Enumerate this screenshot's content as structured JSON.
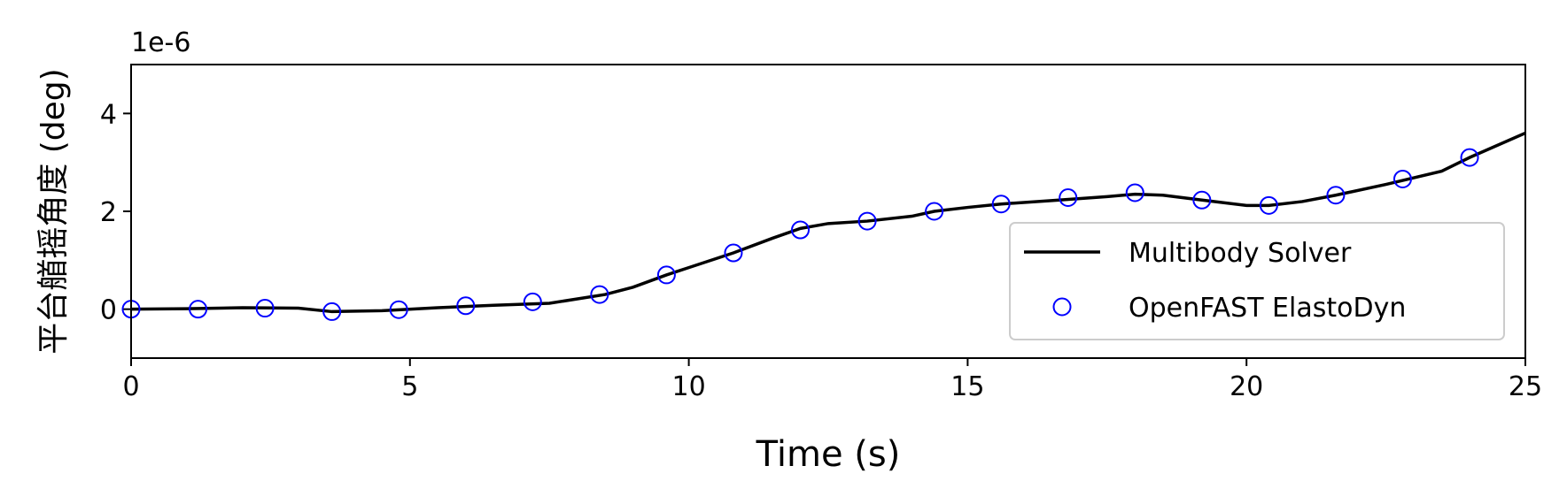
{
  "chart_data": {
    "type": "line",
    "x_label": "Time (s)",
    "y_label": "平台艏摇角度 (deg)",
    "y_offset_label": "1e-6",
    "xlim": [
      0,
      25
    ],
    "xticks": [
      0,
      5,
      10,
      15,
      20,
      25
    ],
    "ylim": [
      -1,
      5
    ],
    "yticks": [
      0,
      2,
      4
    ],
    "grid": false,
    "legend": "lower right",
    "series": [
      {
        "name": "Multibody Solver",
        "color": "#000000",
        "kind": "line",
        "x": [
          0,
          1,
          2,
          3,
          3.6,
          4.5,
          5.5,
          6.5,
          7.5,
          8.5,
          9,
          9.6,
          10,
          10.8,
          11.5,
          12,
          12.5,
          13.2,
          14,
          14.4,
          15,
          15.6,
          16.5,
          17.5,
          18,
          18.5,
          19.2,
          20,
          20.4,
          21,
          21.6,
          22.5,
          23.5,
          24,
          25
        ],
        "values": [
          0,
          0.01,
          0.03,
          0.02,
          -0.05,
          -0.03,
          0.03,
          0.08,
          0.12,
          0.3,
          0.45,
          0.7,
          0.85,
          1.15,
          1.45,
          1.65,
          1.75,
          1.8,
          1.9,
          2.0,
          2.08,
          2.15,
          2.22,
          2.3,
          2.35,
          2.33,
          2.23,
          2.12,
          2.12,
          2.2,
          2.33,
          2.55,
          2.82,
          3.1,
          3.6
        ]
      },
      {
        "name": "OpenFAST ElastoDyn",
        "color": "#0000ff",
        "kind": "scatter",
        "x": [
          0,
          1.2,
          2.4,
          3.6,
          4.8,
          6.0,
          7.2,
          8.4,
          9.6,
          10.8,
          12.0,
          13.2,
          14.4,
          15.6,
          16.8,
          18.0,
          19.2,
          20.4,
          21.6,
          22.8,
          24.0
        ],
        "values": [
          0,
          0.0,
          0.02,
          -0.05,
          -0.01,
          0.07,
          0.15,
          0.3,
          0.7,
          1.15,
          1.62,
          1.8,
          2.0,
          2.15,
          2.28,
          2.38,
          2.23,
          2.12,
          2.33,
          2.66,
          3.1
        ]
      }
    ]
  }
}
